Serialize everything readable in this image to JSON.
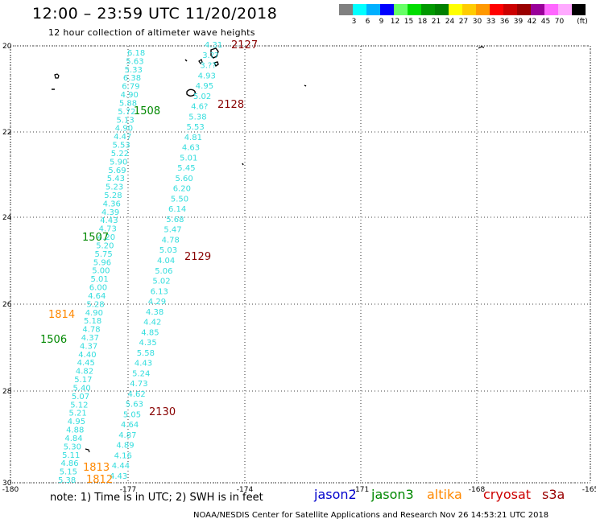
{
  "header": {
    "title": "12:00 – 23:59 UTC 11/20/2018",
    "subtitle": "12 hour collection of altimeter wave heights"
  },
  "colorbar": {
    "unit": "(ft)",
    "entries": [
      {
        "color": "#808080",
        "label": ""
      },
      {
        "color": "#00ffff",
        "label": "3"
      },
      {
        "color": "#00b0ff",
        "label": "6"
      },
      {
        "color": "#0000ff",
        "label": "9"
      },
      {
        "color": "#66ff66",
        "label": "12"
      },
      {
        "color": "#00dd00",
        "label": "15"
      },
      {
        "color": "#009900",
        "label": "18"
      },
      {
        "color": "#008000",
        "label": "21"
      },
      {
        "color": "#ffff00",
        "label": "24"
      },
      {
        "color": "#ffcc00",
        "label": "27"
      },
      {
        "color": "#ff9900",
        "label": "30"
      },
      {
        "color": "#ff0000",
        "label": "33"
      },
      {
        "color": "#cc0000",
        "label": "36"
      },
      {
        "color": "#990000",
        "label": "39"
      },
      {
        "color": "#990099",
        "label": "42"
      },
      {
        "color": "#ff66ff",
        "label": "45"
      },
      {
        "color": "#ffaaff",
        "label": "70"
      },
      {
        "color": "#000000",
        "label": ""
      }
    ]
  },
  "axes": {
    "lat_labels": [
      "20",
      "22",
      "24",
      "26",
      "28",
      "30"
    ],
    "lon_labels": [
      "-180",
      "-177",
      "-174",
      "-171",
      "-168",
      "-165"
    ]
  },
  "tracks": {
    "track_a_color": "#33dddd",
    "track_b_color": "#33dddd",
    "track_a": [
      "6.18",
      "5.63",
      "5.33",
      "6.38",
      "6.79",
      "4.90",
      "5.88",
      "5.72",
      "5.13",
      "4.90",
      "4.47",
      "5.53",
      "5.22",
      "5.90",
      "5.69",
      "5.43",
      "5.23",
      "5.28",
      "4.36",
      "4.39",
      "4.43",
      "4.73",
      "4.20",
      "5.20",
      "5.75",
      "5.96",
      "5.00",
      "5.01",
      "6.00",
      "4.64",
      "5.28",
      "4.90",
      "5.18",
      "4.78",
      "4.37",
      "4.37",
      "4.40",
      "4.45",
      "4.82",
      "5.17",
      "5.40",
      "5.07",
      "5.12",
      "5.21",
      "4.95",
      "4.88",
      "4.84",
      "5.30",
      "5.11",
      "4.86",
      "5.15",
      "5.38"
    ],
    "track_b": [
      "4.31",
      "3.??",
      "3.??",
      "4.93",
      "4.95",
      "5.02",
      "4.6?",
      "5.38",
      "5.53",
      "4.81",
      "4.63",
      "5.01",
      "5.45",
      "5.60",
      "6.20",
      "5.50",
      "6.14",
      "5.68",
      "5.47",
      "4.78",
      "5.03",
      "4.04",
      "5.06",
      "5.02",
      "6.13",
      "4.29",
      "4.38",
      "4.42",
      "4.85",
      "4.35",
      "5.58",
      "4.43",
      "5.24",
      "4.73",
      "4.62",
      "5.63",
      "5.05",
      "4.64",
      "4.87",
      "4.89",
      "4.16",
      "4.44",
      "4.43"
    ]
  },
  "labels": [
    {
      "text": "2127",
      "color": "#880000"
    },
    {
      "text": "2128",
      "color": "#880000"
    },
    {
      "text": "1508",
      "color": "#008800"
    },
    {
      "text": "1507",
      "color": "#008800"
    },
    {
      "text": "2129",
      "color": "#880000"
    },
    {
      "text": "1814",
      "color": "#ff8800"
    },
    {
      "text": "1506",
      "color": "#008800"
    },
    {
      "text": "2130",
      "color": "#880000"
    },
    {
      "text": "1813",
      "color": "#ff8800"
    },
    {
      "text": "1812",
      "color": "#ff8800"
    }
  ],
  "footer": {
    "notes": "note: 1) Time is in UTC; 2) SWH is in feet",
    "satellites": [
      {
        "name": "jason2",
        "color": "#0000cc"
      },
      {
        "name": "jason3",
        "color": "#008800"
      },
      {
        "name": "altika",
        "color": "#ff8800"
      },
      {
        "name": "cryosat",
        "color": "#cc0000"
      },
      {
        "name": "s3a",
        "color": "#990000"
      }
    ],
    "credit": "NOAA/NESDIS Center for Satellite Applications and Research    Nov 26 14:53:21 UTC 2018"
  }
}
